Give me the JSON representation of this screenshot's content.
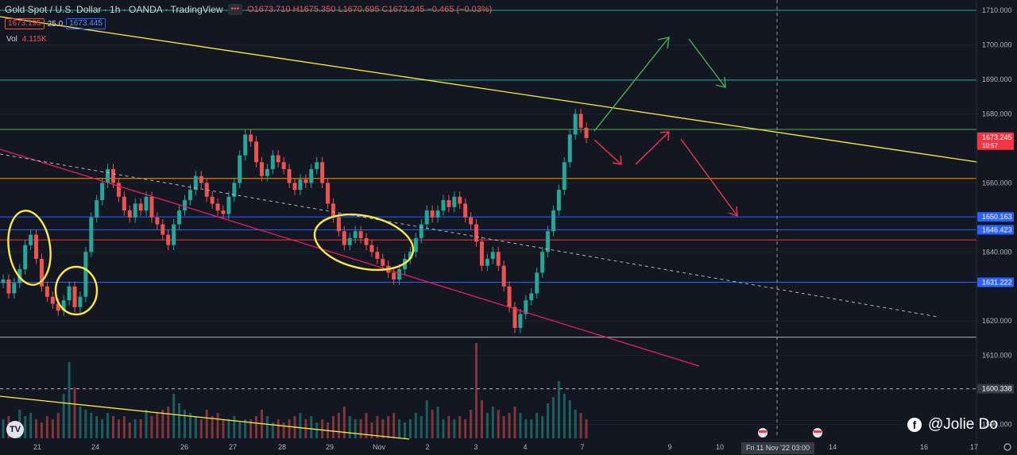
{
  "header": {
    "symbol": "Gold Spot / U.S. Dollar · 1h · OANDA · TradingView",
    "ohlc": "O1673.710 H1675.350 L1670.695 C1673.245 −0.465 (−0.03%)",
    "dots_icon": "more-dots-icon",
    "bid": "1673.195",
    "spread": "25.0",
    "ask": "1673.445",
    "vol_label": "Vol",
    "vol_value": "4.115K"
  },
  "chart_data": {
    "type": "candlestick",
    "y_axis": {
      "ylim": [
        1586,
        1713
      ],
      "ticks": [
        "1710.000",
        "1700.000",
        "1690.000",
        "1680.000",
        "1660.000",
        "1640.000",
        "1620.000",
        "1610.000",
        "1590.000"
      ]
    },
    "x_axis": {
      "ticks": [
        "21",
        "24",
        "26",
        "27",
        "28",
        "29",
        "Nov",
        "2",
        "3",
        "4",
        "7",
        "9",
        "10",
        "14",
        "16",
        "17"
      ],
      "crosshair_label": "Fri 11 Nov '22  03:00"
    },
    "price_tags": [
      {
        "label": "1673.245",
        "sub": "10:57",
        "value": 1673.245,
        "color": "#f23645"
      },
      {
        "label": "1650.163",
        "value": 1650.163,
        "color": "#2962ff"
      },
      {
        "label": "1646.423",
        "value": 1646.423,
        "color": "#2962ff"
      },
      {
        "label": "1631.222",
        "value": 1631.222,
        "color": "#2962ff"
      },
      {
        "label": "1600.338",
        "value": 1600.338,
        "color": "#363a45"
      }
    ],
    "horizontal_levels": [
      {
        "value": 1710.0,
        "color": "#26a69a"
      },
      {
        "value": 1689.8,
        "color": "#26a69a"
      },
      {
        "value": 1675.5,
        "color": "#4caf50"
      },
      {
        "value": 1661.3,
        "color": "#ff9800"
      },
      {
        "value": 1650.163,
        "color": "#2962ff"
      },
      {
        "value": 1646.423,
        "color": "#2962ff"
      },
      {
        "value": 1643.5,
        "color": "#f23645"
      },
      {
        "value": 1631.222,
        "color": "#2962ff"
      },
      {
        "value": 1615.3,
        "color": "#b2b5be"
      },
      {
        "value": 1600.338,
        "color": "#b2b5be"
      }
    ],
    "series": [
      {
        "name": "",
        "values": [
          1632,
          1628,
          1631,
          1635,
          1642,
          1645,
          1638,
          1630,
          1627,
          1625,
          1623,
          1626,
          1630,
          1624,
          1627,
          1640,
          1650,
          1655,
          1660,
          1664,
          1660,
          1656,
          1652,
          1650,
          1654,
          1652,
          1656,
          1650,
          1648,
          1645,
          1642,
          1648,
          1652,
          1655,
          1658,
          1662,
          1660,
          1656,
          1654,
          1652,
          1651,
          1656,
          1660,
          1668,
          1674,
          1672,
          1666,
          1662,
          1664,
          1668,
          1666,
          1664,
          1660,
          1658,
          1661,
          1660,
          1664,
          1666,
          1660,
          1654,
          1650,
          1646,
          1642,
          1644,
          1646,
          1644,
          1642,
          1640,
          1638,
          1636,
          1634,
          1632,
          1635,
          1638,
          1640,
          1644,
          1648,
          1652,
          1650,
          1652,
          1655,
          1653,
          1656,
          1654,
          1650,
          1648,
          1643,
          1636,
          1638,
          1640,
          1636,
          1630,
          1624,
          1618,
          1622,
          1626,
          1628,
          1634,
          1640,
          1646,
          1652,
          1658,
          1666,
          1674,
          1680,
          1676,
          1673
        ]
      }
    ],
    "volume": [
      6,
      7,
      5,
      9,
      7,
      8,
      6,
      5,
      7,
      6,
      8,
      14,
      24,
      16,
      10,
      9,
      8,
      7,
      6,
      8,
      7,
      6,
      7,
      5,
      6,
      6,
      9,
      7,
      8,
      9,
      10,
      14,
      11,
      9,
      8,
      7,
      6,
      9,
      7,
      8,
      6,
      6,
      7,
      5,
      6,
      6,
      7,
      9,
      7,
      5,
      6,
      5,
      6,
      7,
      8,
      6,
      7,
      5,
      6,
      5,
      7,
      8,
      10,
      7,
      6,
      6,
      8,
      5,
      7,
      6,
      7,
      8,
      6,
      5,
      6,
      8,
      7,
      12,
      9,
      10,
      6,
      7,
      6,
      7,
      6,
      9,
      30,
      12,
      8,
      10,
      9,
      7,
      8,
      10,
      8,
      6,
      6,
      8,
      7,
      11,
      13,
      18,
      14,
      12,
      9,
      8,
      6
    ]
  },
  "annotations": {
    "arrow_color_up": "#4caf50",
    "arrow_color_down": "#f23645",
    "circle_color": "#ffeb3b",
    "trendline_colors": [
      "#ffeb3b",
      "#e91e63"
    ]
  },
  "watermark": "@Jolie Do",
  "watermark_icon": "facebook-icon",
  "logo_icon": "tradingview-logo-icon"
}
